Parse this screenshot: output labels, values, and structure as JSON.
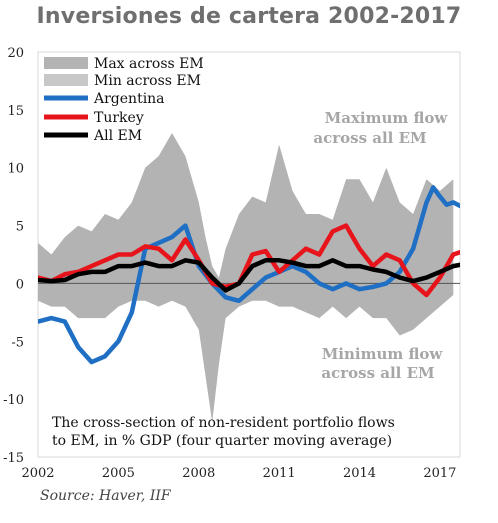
{
  "title": "Inversiones de cartera 2002-2017",
  "source": "Source: Haver, IIF",
  "chart_data": {
    "type": "area",
    "title": "Inversiones de cartera 2002-2017",
    "xlim": [
      2002,
      2017.75
    ],
    "ylim": [
      -15,
      20
    ],
    "x_ticks": [
      2002,
      2005,
      2008,
      2011,
      2014,
      2017
    ],
    "y_ticks": [
      -15,
      -10,
      -5,
      0,
      5,
      10,
      15,
      20
    ],
    "legend_position": "top-left",
    "annotations": [
      [
        "Maximum flow",
        "across all EM"
      ],
      [
        "Minimum flow",
        "across all EM"
      ],
      [
        "The cross-section of non-resident portfolio flows",
        "to EM, in % GDP (four quarter moving average)"
      ]
    ],
    "band": {
      "max_name": "Max across EM",
      "min_name": "Min across EM",
      "color": "#b3b3b3",
      "x": [
        2002,
        2002.5,
        2003,
        2003.5,
        2004,
        2004.5,
        2005,
        2005.5,
        2006,
        2006.5,
        2007,
        2007.5,
        2008,
        2008.25,
        2008.5,
        2008.75,
        2009,
        2009.5,
        2010,
        2010.5,
        2011,
        2011.5,
        2012,
        2012.5,
        2013,
        2013.5,
        2014,
        2014.5,
        2015,
        2015.5,
        2016,
        2016.5,
        2017,
        2017.5
      ],
      "max": [
        3.5,
        2.5,
        4,
        5,
        4.5,
        6,
        5.5,
        7,
        10,
        11,
        13,
        11,
        7,
        4,
        1.5,
        0.5,
        3,
        6,
        7.5,
        7,
        12,
        8,
        6,
        6,
        5.5,
        9,
        9,
        7,
        10,
        7,
        6,
        9,
        8,
        9
      ],
      "min": [
        -1.5,
        -2,
        -2,
        -3,
        -3,
        -3,
        -2,
        -1.5,
        -1.5,
        -2,
        -1.5,
        -2,
        -4,
        -8,
        -12,
        -7,
        -3,
        -2,
        -1.5,
        -1.5,
        -2,
        -2,
        -2.5,
        -3,
        -2,
        -3,
        -2,
        -3,
        -3,
        -4.5,
        -4,
        -3,
        -2,
        -1
      ]
    },
    "series": [
      {
        "name": "Argentina",
        "color": "#1f6fc4",
        "x": [
          2002,
          2002.5,
          2003,
          2003.5,
          2004,
          2004.5,
          2005,
          2005.5,
          2006,
          2006.5,
          2007,
          2007.5,
          2008,
          2008.5,
          2009,
          2009.5,
          2010,
          2010.5,
          2011,
          2011.5,
          2012,
          2012.5,
          2013,
          2013.5,
          2014,
          2014.5,
          2015,
          2015.5,
          2016,
          2016.25,
          2016.5,
          2016.75,
          2017,
          2017.25,
          2017.5,
          2017.75
        ],
        "y": [
          -3.3,
          -3.0,
          -3.3,
          -5.5,
          -6.8,
          -6.3,
          -5.0,
          -2.5,
          3.0,
          3.5,
          4.0,
          5.0,
          1.5,
          0.0,
          -1.2,
          -1.5,
          -0.5,
          0.5,
          1.0,
          1.5,
          1.0,
          0.0,
          -0.5,
          0.0,
          -0.5,
          -0.3,
          0.0,
          1.0,
          3.0,
          5.0,
          7.0,
          8.3,
          7.5,
          6.8,
          7.0,
          6.7
        ]
      },
      {
        "name": "Turkey",
        "color": "#e8141b",
        "x": [
          2002,
          2002.5,
          2003,
          2003.5,
          2004,
          2004.5,
          2005,
          2005.5,
          2006,
          2006.5,
          2007,
          2007.5,
          2008,
          2008.5,
          2009,
          2009.5,
          2010,
          2010.5,
          2011,
          2011.5,
          2012,
          2012.5,
          2013,
          2013.5,
          2014,
          2014.5,
          2015,
          2015.5,
          2016,
          2016.5,
          2017,
          2017.5,
          2017.75
        ],
        "y": [
          0.5,
          0.2,
          0.8,
          1.0,
          1.5,
          2.0,
          2.5,
          2.5,
          3.2,
          3.0,
          2.0,
          3.8,
          2.0,
          0.0,
          -0.3,
          0.0,
          2.5,
          2.8,
          1.0,
          2.0,
          3.0,
          2.5,
          4.5,
          5.0,
          3.0,
          1.5,
          2.5,
          2.0,
          0.0,
          -1.0,
          0.5,
          2.5,
          2.7
        ]
      },
      {
        "name": "All EM",
        "color": "#000000",
        "x": [
          2002,
          2002.5,
          2003,
          2003.5,
          2004,
          2004.5,
          2005,
          2005.5,
          2006,
          2006.5,
          2007,
          2007.5,
          2008,
          2008.5,
          2009,
          2009.5,
          2010,
          2010.5,
          2011,
          2011.5,
          2012,
          2012.5,
          2013,
          2013.5,
          2014,
          2014.5,
          2015,
          2015.5,
          2016,
          2016.5,
          2017,
          2017.5,
          2017.75
        ],
        "y": [
          0.3,
          0.2,
          0.3,
          0.8,
          1.0,
          1.0,
          1.5,
          1.5,
          1.8,
          1.5,
          1.5,
          2.0,
          1.8,
          0.5,
          -0.6,
          0.0,
          1.5,
          2.0,
          2.0,
          1.8,
          1.5,
          1.5,
          2.0,
          1.5,
          1.5,
          1.2,
          1.0,
          0.5,
          0.2,
          0.5,
          1.0,
          1.5,
          1.6
        ]
      }
    ]
  }
}
